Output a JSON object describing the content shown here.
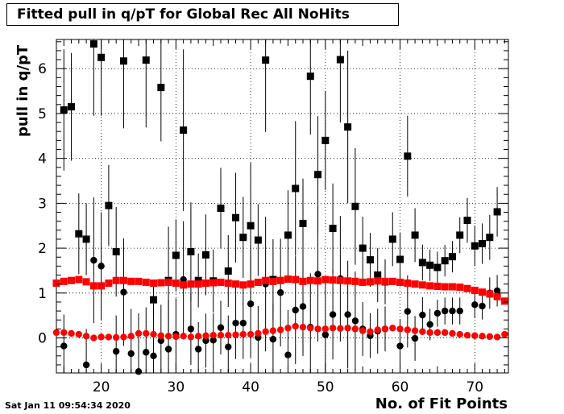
{
  "chart_data": {
    "type": "scatter",
    "title": "Fitted pull in q/pT for Global Rec All NoHits",
    "xlabel": "No. of Fit Points",
    "ylabel": "pull in q/pT",
    "timestamp": "Sat Jan 11 09:54:34 2020",
    "xlim": [
      14,
      74.5
    ],
    "ylim": [
      -0.78,
      6.65
    ],
    "xticks": [
      20,
      30,
      40,
      50,
      60,
      70
    ],
    "yticks": [
      0,
      1,
      2,
      3,
      4,
      5,
      6
    ],
    "grid": true,
    "colors": {
      "black": "#000000",
      "red": "#ff0000"
    },
    "series": [
      {
        "marker": "square",
        "color": "#000000",
        "x": [
          15,
          16,
          17,
          18,
          19,
          20,
          21,
          22,
          23,
          24,
          25,
          26,
          27,
          28,
          29,
          30,
          31,
          32,
          33,
          34,
          35,
          36,
          37,
          38,
          39,
          40,
          41,
          42,
          43,
          44,
          45,
          46,
          47,
          48,
          49,
          50,
          51,
          52,
          53,
          54,
          55,
          56,
          57,
          58,
          59,
          60,
          61,
          62,
          63,
          64,
          65,
          66,
          67,
          68,
          69,
          70,
          71,
          72,
          73
        ],
        "y": [
          5.08,
          5.15,
          2.32,
          2.2,
          6.55,
          6.25,
          2.95,
          1.92,
          6.17,
          null,
          null,
          6.19,
          0.85,
          5.58,
          1.28,
          1.84,
          4.63,
          1.92,
          1.28,
          1.85,
          1.27,
          2.89,
          1.49,
          2.68,
          2.24,
          2.5,
          2.18,
          6.19,
          1.3,
          null,
          2.29,
          3.33,
          2.55,
          5.83,
          3.64,
          4.4,
          2.44,
          6.2,
          4.7,
          2.93,
          2.0,
          1.74,
          1.4,
          1.25,
          2.2,
          1.75,
          4.05,
          2.29,
          1.68,
          1.62,
          1.57,
          1.72,
          1.81,
          2.29,
          2.62,
          2.05,
          2.1,
          2.24,
          2.81
        ],
        "err": [
          1.35,
          1.2,
          0.9,
          0.8,
          1.6,
          1.3,
          0.9,
          1.0,
          1.5,
          0,
          0,
          1.5,
          0.4,
          1.2,
          1.2,
          0.8,
          1.8,
          1.1,
          0.6,
          0.9,
          0.7,
          0.9,
          0.8,
          1.0,
          0.9,
          1.4,
          0.8,
          1.6,
          0.9,
          0,
          1.0,
          1.5,
          1.0,
          1.3,
          1.3,
          1.1,
          1.0,
          1.4,
          1.7,
          1.3,
          0.7,
          0.6,
          0.6,
          0.5,
          0.6,
          0.6,
          0.9,
          0.6,
          0.4,
          0.35,
          0.35,
          0.35,
          0.35,
          0.4,
          0.5,
          0.45,
          0.45,
          0.5,
          0.55
        ]
      },
      {
        "marker": "circle",
        "color": "#000000",
        "x": [
          15,
          16,
          17,
          18,
          19,
          20,
          21,
          22,
          23,
          24,
          25,
          26,
          27,
          28,
          29,
          30,
          31,
          32,
          33,
          34,
          35,
          36,
          37,
          38,
          39,
          40,
          41,
          42,
          43,
          44,
          45,
          46,
          47,
          48,
          49,
          50,
          51,
          52,
          53,
          54,
          55,
          56,
          57,
          58,
          59,
          60,
          61,
          62,
          63,
          64,
          65,
          66,
          67,
          68,
          69,
          70,
          71,
          72,
          73
        ],
        "y": [
          -0.18,
          null,
          null,
          -0.6,
          1.73,
          1.6,
          null,
          -0.3,
          1.02,
          -0.35,
          -0.75,
          -0.32,
          -0.4,
          -0.06,
          -0.25,
          0.08,
          1.3,
          0.2,
          -0.25,
          -0.06,
          -0.05,
          0.23,
          -0.2,
          0.33,
          0.33,
          0.76,
          0.01,
          1.2,
          -0.03,
          1.01,
          -0.38,
          0.62,
          0.7,
          0.24,
          1.42,
          0.07,
          0.52,
          1.32,
          0.52,
          0.38,
          0.2,
          0.05,
          0.15,
          0.2,
          null,
          -0.18,
          0.59,
          -0.01,
          0.51,
          0.3,
          0.55,
          0.6,
          0.6,
          0.6,
          null,
          0.74,
          0.71,
          1.0,
          1.05
        ],
        "err": [
          0.7,
          0,
          0,
          0.8,
          1.4,
          1.2,
          0,
          0.8,
          1.2,
          1.0,
          1.3,
          1.0,
          1.1,
          0.8,
          1.1,
          0.8,
          1.3,
          0.8,
          0.6,
          0.6,
          0.6,
          0.6,
          0.7,
          0.8,
          0.8,
          1.2,
          0.7,
          1.5,
          0.8,
          1.2,
          1.0,
          1.2,
          1.1,
          1.2,
          1.5,
          1.2,
          1.0,
          1.4,
          1.2,
          1.1,
          0.6,
          0.5,
          0.5,
          0.5,
          0,
          0.6,
          0.8,
          0.5,
          0.4,
          0.35,
          0.3,
          0.3,
          0.3,
          0.3,
          0,
          0.3,
          0.3,
          0.35,
          0.35
        ]
      },
      {
        "marker": "square",
        "color": "#ff0000",
        "x": [
          14,
          15,
          16,
          17,
          18,
          19,
          20,
          21,
          22,
          23,
          24,
          25,
          26,
          27,
          28,
          29,
          30,
          31,
          32,
          33,
          34,
          35,
          36,
          37,
          38,
          39,
          40,
          41,
          42,
          43,
          44,
          45,
          46,
          47,
          48,
          49,
          50,
          51,
          52,
          53,
          54,
          55,
          56,
          57,
          58,
          59,
          60,
          61,
          62,
          63,
          64,
          65,
          66,
          67,
          68,
          69,
          70,
          71,
          72,
          73,
          74
        ],
        "y": [
          1.22,
          1.26,
          1.28,
          1.3,
          1.25,
          1.16,
          1.16,
          1.22,
          1.28,
          1.28,
          1.26,
          1.26,
          1.24,
          1.22,
          1.23,
          1.24,
          1.22,
          1.18,
          1.2,
          1.2,
          1.22,
          1.23,
          1.24,
          1.22,
          1.2,
          1.18,
          1.2,
          1.24,
          1.28,
          1.26,
          1.28,
          1.31,
          1.3,
          1.26,
          1.28,
          1.27,
          1.3,
          1.29,
          1.28,
          1.27,
          1.26,
          1.24,
          1.25,
          1.27,
          1.26,
          1.26,
          1.24,
          1.22,
          1.2,
          1.18,
          1.16,
          1.15,
          1.14,
          1.14,
          1.13,
          1.1,
          1.06,
          1.02,
          0.98,
          0.92,
          0.82
        ]
      },
      {
        "marker": "circle",
        "color": "#ff0000",
        "x": [
          14,
          15,
          16,
          17,
          18,
          19,
          20,
          21,
          22,
          23,
          24,
          25,
          26,
          27,
          28,
          29,
          30,
          31,
          32,
          33,
          34,
          35,
          36,
          37,
          38,
          39,
          40,
          41,
          42,
          43,
          44,
          45,
          46,
          47,
          48,
          49,
          50,
          51,
          52,
          53,
          54,
          55,
          56,
          57,
          58,
          59,
          60,
          61,
          62,
          63,
          64,
          65,
          66,
          67,
          68,
          69,
          70,
          71,
          72,
          73,
          74
        ],
        "y": [
          0.12,
          0.12,
          0.1,
          0.08,
          0.04,
          0.0,
          0.02,
          0.02,
          0.01,
          0.02,
          0.04,
          0.1,
          0.1,
          0.08,
          0.05,
          0.04,
          0.03,
          0.04,
          0.02,
          0.04,
          0.05,
          0.06,
          0.06,
          0.06,
          0.07,
          0.08,
          0.08,
          0.1,
          0.14,
          0.16,
          0.18,
          0.22,
          0.26,
          0.24,
          0.22,
          0.2,
          0.2,
          0.22,
          0.21,
          0.22,
          0.2,
          0.16,
          0.14,
          0.18,
          0.2,
          0.22,
          0.2,
          0.18,
          0.16,
          0.14,
          0.12,
          0.12,
          0.12,
          0.1,
          0.08,
          0.06,
          0.05,
          0.04,
          0.03,
          0.02,
          0.08
        ]
      }
    ]
  }
}
